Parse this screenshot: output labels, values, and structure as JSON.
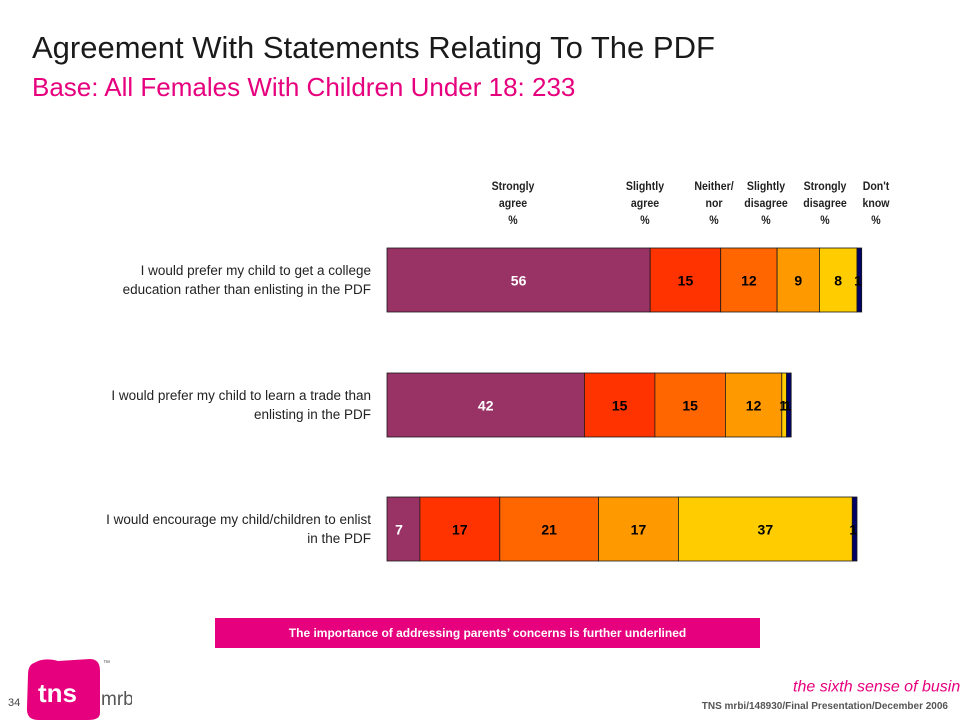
{
  "title": "Agreement With Statements Relating To The PDF",
  "subtitle": "Base:  All Females With Children Under 18:  233",
  "chart_data": {
    "type": "bar",
    "orientation": "horizontal-stacked",
    "unit": "%",
    "categories": [
      "I would prefer my child to get a college education rather than enlisting in the PDF",
      "I would prefer my child to learn a trade than enlisting in the PDF",
      "I would encourage my child/children to enlist in the PDF"
    ],
    "category_lines": [
      [
        "I would prefer my child to get a college",
        "education rather than enlisting in the PDF"
      ],
      [
        "I would prefer my child to learn a trade than",
        "enlisting in the PDF"
      ],
      [
        "I would encourage my child/children to enlist",
        "in the PDF"
      ]
    ],
    "series": [
      {
        "key": "strongly-agree",
        "header": [
          "Strongly",
          "agree",
          "%"
        ],
        "color": "#993366",
        "values": [
          56,
          42,
          7
        ]
      },
      {
        "key": "slightly-agree",
        "header": [
          "Slightly",
          "agree",
          "%"
        ],
        "color": "#ff3300",
        "values": [
          15,
          15,
          17
        ]
      },
      {
        "key": "neither-nor",
        "header": [
          "Neither/",
          "nor",
          "%"
        ],
        "color": "#ff6600",
        "values": [
          12,
          15,
          21
        ]
      },
      {
        "key": "slightly-disagree",
        "header": [
          "Slightly",
          "disagree",
          "%"
        ],
        "color": "#ff9900",
        "values": [
          9,
          12,
          17
        ]
      },
      {
        "key": "strongly-disagree",
        "header": [
          "Strongly",
          "disagree",
          "%"
        ],
        "color": "#ffcc00",
        "values": [
          8,
          1,
          37
        ]
      },
      {
        "key": "dont-know",
        "header": [
          "Don't",
          "know",
          "%"
        ],
        "color": "#000066",
        "values": [
          1,
          1,
          1
        ]
      }
    ],
    "value_labels": [
      [
        "56",
        "15",
        "12",
        "9",
        "8",
        "1"
      ],
      [
        "42",
        "15",
        "15",
        "12",
        "1",
        "1"
      ],
      [
        "7",
        "17",
        "21",
        "17",
        "37",
        "1"
      ]
    ]
  },
  "banner": "The importance of addressing parents’ concerns is further underlined",
  "page_number": "34",
  "footer": "TNS mrbi/148930/Final Presentation/December 2006",
  "logo": {
    "main": "tns",
    "sub": "mrbi",
    "tm": "™",
    "color": "#e6007e"
  },
  "tagline": "the sixth sense of business",
  "tagline_tm": "™"
}
